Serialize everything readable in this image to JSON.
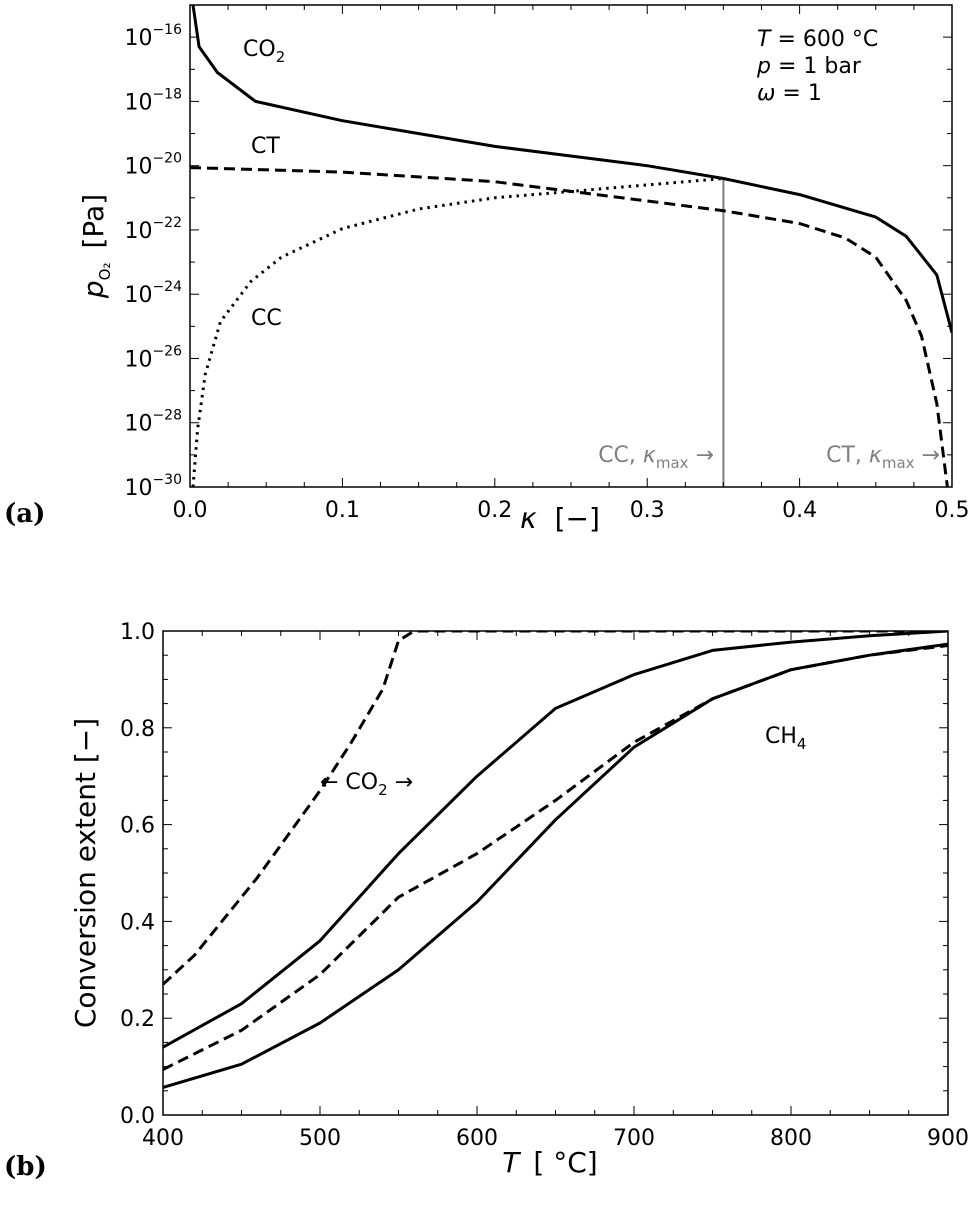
{
  "chart_data": [
    {
      "panel_label": "(a)",
      "type": "line",
      "xlabel": {
        "symbol": "κ",
        "unit": "[−]"
      },
      "ylabel": {
        "symbol": "p",
        "sub": "O₂",
        "unit": "[Pa]"
      },
      "xlim": [
        0.0,
        0.5
      ],
      "ylim": [
        1e-30,
        1e-15
      ],
      "yscale": "log",
      "xticks": [
        0.0,
        0.1,
        0.2,
        0.3,
        0.4,
        0.5
      ],
      "xtick_labels": [
        "0.0",
        "0.1",
        "0.2",
        "0.3",
        "0.4",
        "0.5"
      ],
      "yticks_exponents": [
        -30,
        -28,
        -26,
        -24,
        -22,
        -20,
        -18,
        -16
      ],
      "grid": false,
      "conditions": [
        {
          "symbol": "T",
          "text": " = 600 °C"
        },
        {
          "symbol": "p",
          "text": " = 1 bar"
        },
        {
          "symbol": "ω",
          "text": " = 1"
        }
      ],
      "series": [
        {
          "name": "CO₂",
          "style": "solid",
          "x": [
            0.002,
            0.006,
            0.018,
            0.043,
            0.1,
            0.2,
            0.3,
            0.35,
            0.4,
            0.45,
            0.47,
            0.49,
            0.5
          ],
          "log10_y": [
            -15.0,
            -16.3,
            -17.1,
            -18.0,
            -18.6,
            -19.4,
            -20.0,
            -20.4,
            -20.9,
            -21.6,
            -22.2,
            -23.4,
            -25.2
          ]
        },
        {
          "name": "CT",
          "style": "dashed",
          "x": [
            0.0,
            0.1,
            0.2,
            0.25,
            0.3,
            0.35,
            0.4,
            0.43,
            0.45,
            0.47,
            0.48,
            0.49,
            0.497
          ],
          "log10_y": [
            -20.06,
            -20.2,
            -20.5,
            -20.8,
            -21.1,
            -21.4,
            -21.8,
            -22.25,
            -22.85,
            -24.2,
            -25.3,
            -27.4,
            -30.0
          ]
        },
        {
          "name": "CC",
          "style": "dotted",
          "x": [
            0.002,
            0.005,
            0.01,
            0.02,
            0.04,
            0.06,
            0.1,
            0.15,
            0.2,
            0.25,
            0.3,
            0.35
          ],
          "log10_y": [
            -30.0,
            -28.2,
            -26.5,
            -24.85,
            -23.6,
            -22.85,
            -21.96,
            -21.35,
            -21.0,
            -20.8,
            -20.6,
            -20.4
          ]
        }
      ],
      "vline": {
        "x": 0.35,
        "color": "#808080"
      },
      "annotations": [
        {
          "text": "CO",
          "sub": "2"
        },
        {
          "text": "CT"
        },
        {
          "text": "CC"
        },
        {
          "text": "CC,  ",
          "symbol": "κ",
          "sub": "max",
          "tail": " →"
        },
        {
          "text": "CT,  ",
          "symbol": "κ",
          "sub": "max",
          "tail": " →"
        }
      ]
    },
    {
      "panel_label": "(b)",
      "type": "line",
      "xlabel": {
        "symbol": "T",
        "unit": "[ °C]"
      },
      "ylabel": {
        "text": "Conversion extent  [−]"
      },
      "xlim": [
        400,
        900
      ],
      "ylim": [
        0.0,
        1.0
      ],
      "xticks": [
        400,
        500,
        600,
        700,
        800,
        900
      ],
      "xtick_labels": [
        "400",
        "500",
        "600",
        "700",
        "800",
        "900"
      ],
      "yticks": [
        0.0,
        0.2,
        0.4,
        0.6,
        0.8,
        1.0
      ],
      "ytick_labels": [
        "0.0",
        "0.2",
        "0.4",
        "0.6",
        "0.8",
        "1.0"
      ],
      "grid": false,
      "series": [
        {
          "style": "dashed",
          "x": [
            400,
            420,
            440,
            460,
            480,
            500,
            520,
            540,
            550,
            560,
            700,
            900
          ],
          "y": [
            0.27,
            0.33,
            0.41,
            0.49,
            0.58,
            0.67,
            0.77,
            0.88,
            0.98,
            1.0,
            1.0,
            1.0
          ]
        },
        {
          "style": "solid",
          "x": [
            400,
            450,
            500,
            550,
            600,
            650,
            700,
            750,
            800,
            850,
            900
          ],
          "y": [
            0.14,
            0.23,
            0.36,
            0.54,
            0.7,
            0.84,
            0.91,
            0.96,
            0.977,
            0.99,
            1.0
          ]
        },
        {
          "style": "dashed",
          "x": [
            400,
            450,
            500,
            550,
            600,
            650,
            700,
            750,
            800,
            850,
            900
          ],
          "y": [
            0.094,
            0.175,
            0.29,
            0.45,
            0.54,
            0.65,
            0.77,
            0.86,
            0.92,
            0.95,
            0.97
          ]
        },
        {
          "style": "solid",
          "x": [
            400,
            450,
            500,
            550,
            600,
            650,
            700,
            750,
            800,
            850,
            900
          ],
          "y": [
            0.057,
            0.105,
            0.19,
            0.3,
            0.44,
            0.61,
            0.76,
            0.86,
            0.92,
            0.95,
            0.973
          ]
        }
      ],
      "annotations": [
        {
          "text": "← CO",
          "sub": "2",
          "tail": " →"
        },
        {
          "text": "CH",
          "sub": "4"
        }
      ]
    }
  ]
}
